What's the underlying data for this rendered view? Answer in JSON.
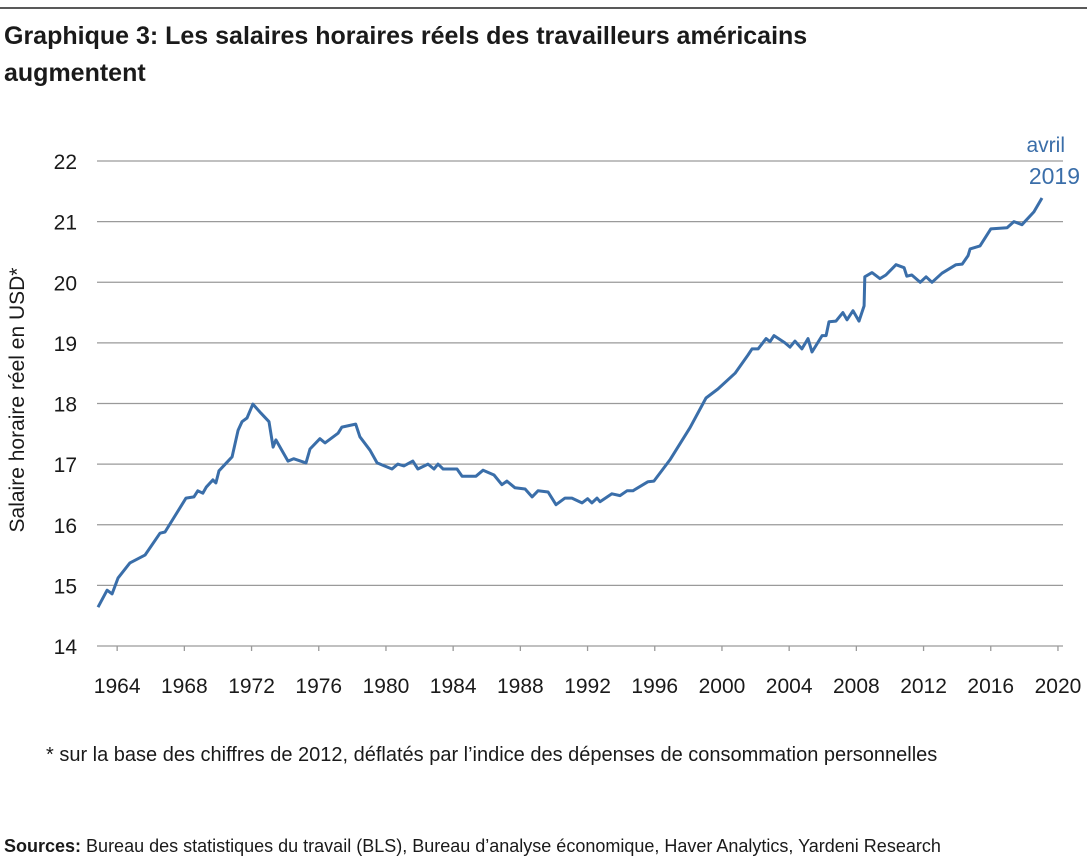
{
  "chart_data": {
    "type": "line",
    "title": [
      "Graphique 3: Les salaires horaires réels des travailleurs américains",
      "augmentent"
    ],
    "y_label": "Salaire horaire réel en USD*",
    "annotation": [
      "avril",
      "2019"
    ],
    "footnote": "* sur la base des chiffres de 2012, déflatés par l’indice des dépenses de consommation personnelles",
    "source_label": "Sources:",
    "source": "Bureau des statistiques du travail (BLS), Bureau d’analyse économique, Haver Analytics, Yardeni Research",
    "xlim": [
      1962.8,
      2020.3
    ],
    "xticks": [
      1964,
      1968,
      1972,
      1976,
      1980,
      1984,
      1988,
      1992,
      1996,
      2000,
      2004,
      2008,
      2012,
      2016,
      2020
    ],
    "ylim": [
      14,
      22
    ],
    "yticks": [
      14,
      15,
      16,
      17,
      18,
      19,
      20,
      21,
      22
    ],
    "grid": true,
    "series": [
      {
        "name": "Salaire horaire réel",
        "color": "#3a6ea9",
        "x": [
          1962.86,
          1963.4,
          1963.7,
          1964.05,
          1964.76,
          1965.66,
          1966.55,
          1966.85,
          1968.1,
          1968.57,
          1968.8,
          1969.1,
          1969.3,
          1969.7,
          1969.88,
          1970.06,
          1970.84,
          1971.2,
          1971.43,
          1971.73,
          1972.08,
          1972.56,
          1973.04,
          1973.28,
          1973.45,
          1974.17,
          1974.5,
          1975.24,
          1975.48,
          1976.07,
          1976.37,
          1977.15,
          1977.38,
          1978.2,
          1978.45,
          1979.05,
          1979.47,
          1980.36,
          1980.7,
          1981.07,
          1981.6,
          1981.9,
          1982.5,
          1982.86,
          1983.1,
          1983.4,
          1984.23,
          1984.53,
          1985.36,
          1985.78,
          1986.43,
          1986.9,
          1987.2,
          1987.68,
          1988.28,
          1988.7,
          1989.05,
          1989.65,
          1990.12,
          1990.66,
          1991.07,
          1991.67,
          1992.0,
          1992.26,
          1992.56,
          1992.74,
          1993.45,
          1993.93,
          1994.35,
          1994.7,
          1995.6,
          1995.95,
          1996.9,
          1998.1,
          1999.05,
          1999.76,
          2000.78,
          2001.55,
          2001.79,
          2002.15,
          2002.63,
          2002.86,
          2003.1,
          2003.75,
          2004.05,
          2004.35,
          2004.76,
          2005.12,
          2005.36,
          2005.96,
          2006.2,
          2006.37,
          2006.79,
          2007.2,
          2007.44,
          2007.8,
          2008.16,
          2008.46,
          2008.5,
          2008.93,
          2009.4,
          2009.76,
          2010.36,
          2010.84,
          2011.0,
          2011.3,
          2011.8,
          2012.15,
          2012.5,
          2013.1,
          2013.93,
          2014.3,
          2014.65,
          2014.77,
          2015.36,
          2016.0,
          2016.97,
          2017.38,
          2017.86,
          2018.57,
          2019.05
        ],
        "values": [
          14.64,
          14.92,
          14.86,
          15.12,
          15.37,
          15.5,
          15.86,
          15.88,
          16.44,
          16.46,
          16.56,
          16.52,
          16.62,
          16.74,
          16.69,
          16.89,
          17.12,
          17.56,
          17.7,
          17.76,
          17.99,
          17.84,
          17.7,
          17.28,
          17.4,
          17.05,
          17.09,
          17.02,
          17.25,
          17.42,
          17.35,
          17.51,
          17.61,
          17.66,
          17.45,
          17.23,
          17.02,
          16.92,
          17.0,
          16.97,
          17.05,
          16.92,
          17.0,
          16.92,
          17.0,
          16.92,
          16.92,
          16.8,
          16.8,
          16.9,
          16.82,
          16.66,
          16.72,
          16.61,
          16.59,
          16.46,
          16.56,
          16.54,
          16.33,
          16.44,
          16.44,
          16.36,
          16.43,
          16.36,
          16.44,
          16.38,
          16.51,
          16.48,
          16.56,
          16.56,
          16.71,
          16.72,
          17.07,
          17.6,
          18.09,
          18.24,
          18.5,
          18.8,
          18.9,
          18.9,
          19.07,
          19.02,
          19.12,
          19.0,
          18.93,
          19.03,
          18.9,
          19.07,
          18.85,
          19.12,
          19.12,
          19.35,
          19.36,
          19.5,
          19.38,
          19.53,
          19.36,
          19.61,
          20.09,
          20.16,
          20.06,
          20.12,
          20.29,
          20.24,
          20.1,
          20.12,
          20.0,
          20.09,
          20.0,
          20.15,
          20.29,
          20.3,
          20.44,
          20.55,
          20.6,
          20.88,
          20.9,
          21.0,
          20.95,
          21.16,
          21.39
        ]
      }
    ]
  }
}
